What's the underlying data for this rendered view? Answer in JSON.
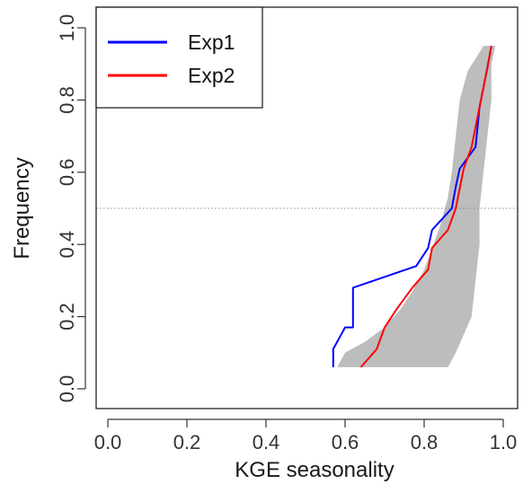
{
  "chart_data": {
    "type": "line",
    "title": "",
    "xlabel": "KGE seasonality",
    "ylabel": "Frequency",
    "xlim": [
      0.0,
      1.0
    ],
    "ylim": [
      0.0,
      1.0
    ],
    "xticks": [
      "0.0",
      "0.2",
      "0.4",
      "0.6",
      "0.8",
      "1.0"
    ],
    "yticks": [
      "0.0",
      "0.2",
      "0.4",
      "0.6",
      "0.8",
      "1.0"
    ],
    "grid": false,
    "legend_position": "top-left",
    "reference_line": {
      "y": 0.5,
      "style": "dotted"
    },
    "band": {
      "color": "#bdbdbd",
      "lower": [
        {
          "x": 0.86,
          "y": 0.06
        },
        {
          "x": 0.88,
          "y": 0.1
        },
        {
          "x": 0.9,
          "y": 0.15
        },
        {
          "x": 0.92,
          "y": 0.2
        },
        {
          "x": 0.93,
          "y": 0.3
        },
        {
          "x": 0.94,
          "y": 0.4
        },
        {
          "x": 0.94,
          "y": 0.5
        },
        {
          "x": 0.95,
          "y": 0.6
        },
        {
          "x": 0.96,
          "y": 0.7
        },
        {
          "x": 0.97,
          "y": 0.8
        },
        {
          "x": 0.97,
          "y": 0.9
        },
        {
          "x": 0.98,
          "y": 0.95
        }
      ],
      "upper": [
        {
          "x": 0.58,
          "y": 0.06
        },
        {
          "x": 0.6,
          "y": 0.1
        },
        {
          "x": 0.65,
          "y": 0.13
        },
        {
          "x": 0.7,
          "y": 0.17
        },
        {
          "x": 0.74,
          "y": 0.22
        },
        {
          "x": 0.77,
          "y": 0.27
        },
        {
          "x": 0.8,
          "y": 0.33
        },
        {
          "x": 0.82,
          "y": 0.39
        },
        {
          "x": 0.84,
          "y": 0.45
        },
        {
          "x": 0.86,
          "y": 0.53
        },
        {
          "x": 0.87,
          "y": 0.6
        },
        {
          "x": 0.88,
          "y": 0.7
        },
        {
          "x": 0.89,
          "y": 0.8
        },
        {
          "x": 0.91,
          "y": 0.88
        },
        {
          "x": 0.95,
          "y": 0.95
        }
      ]
    },
    "series": [
      {
        "name": "Exp1",
        "color": "#0000ff",
        "points": [
          {
            "x": 0.57,
            "y": 0.06
          },
          {
            "x": 0.57,
            "y": 0.11
          },
          {
            "x": 0.6,
            "y": 0.17
          },
          {
            "x": 0.62,
            "y": 0.17
          },
          {
            "x": 0.62,
            "y": 0.28
          },
          {
            "x": 0.78,
            "y": 0.34
          },
          {
            "x": 0.81,
            "y": 0.39
          },
          {
            "x": 0.82,
            "y": 0.44
          },
          {
            "x": 0.87,
            "y": 0.5
          },
          {
            "x": 0.88,
            "y": 0.56
          },
          {
            "x": 0.89,
            "y": 0.61
          },
          {
            "x": 0.93,
            "y": 0.67
          },
          {
            "x": 0.94,
            "y": 0.78
          },
          {
            "x": 0.96,
            "y": 0.89
          },
          {
            "x": 0.97,
            "y": 0.95
          }
        ]
      },
      {
        "name": "Exp2",
        "color": "#ff0000",
        "points": [
          {
            "x": 0.64,
            "y": 0.06
          },
          {
            "x": 0.68,
            "y": 0.11
          },
          {
            "x": 0.7,
            "y": 0.17
          },
          {
            "x": 0.73,
            "y": 0.22
          },
          {
            "x": 0.77,
            "y": 0.28
          },
          {
            "x": 0.81,
            "y": 0.33
          },
          {
            "x": 0.82,
            "y": 0.39
          },
          {
            "x": 0.86,
            "y": 0.44
          },
          {
            "x": 0.88,
            "y": 0.5
          },
          {
            "x": 0.9,
            "y": 0.61
          },
          {
            "x": 0.92,
            "y": 0.67
          },
          {
            "x": 0.94,
            "y": 0.78
          },
          {
            "x": 0.96,
            "y": 0.89
          },
          {
            "x": 0.97,
            "y": 0.95
          }
        ]
      }
    ]
  }
}
